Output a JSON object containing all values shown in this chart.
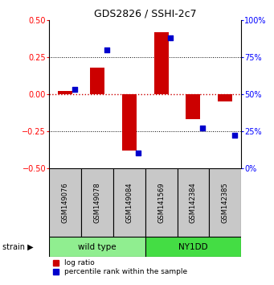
{
  "title": "GDS2826 / SSHI-2c7",
  "samples": [
    "GSM149076",
    "GSM149078",
    "GSM149084",
    "GSM141569",
    "GSM142384",
    "GSM142385"
  ],
  "log_ratio": [
    0.02,
    0.18,
    -0.38,
    0.42,
    -0.17,
    -0.05
  ],
  "percentile_rank": [
    53,
    80,
    10,
    88,
    27,
    22
  ],
  "strain_label": "strain",
  "ylim_left": [
    -0.5,
    0.5
  ],
  "ylim_right": [
    0,
    100
  ],
  "yticks_left": [
    -0.5,
    -0.25,
    0,
    0.25,
    0.5
  ],
  "yticks_right": [
    0,
    25,
    50,
    75,
    100
  ],
  "bar_color_red": "#CC0000",
  "bar_color_blue": "#0000CC",
  "dotted_line_color_red": "#CC0000",
  "dotted_line_color_black": "#000000",
  "background_color": "#ffffff",
  "legend_red_label": "log ratio",
  "legend_blue_label": "percentile rank within the sample",
  "bar_width": 0.45,
  "sample_box_color": "#C8C8C8",
  "wildtype_color": "#90EE90",
  "ny1dd_color": "#44DD44",
  "wildtype_label": "wild type",
  "ny1dd_label": "NY1DD"
}
